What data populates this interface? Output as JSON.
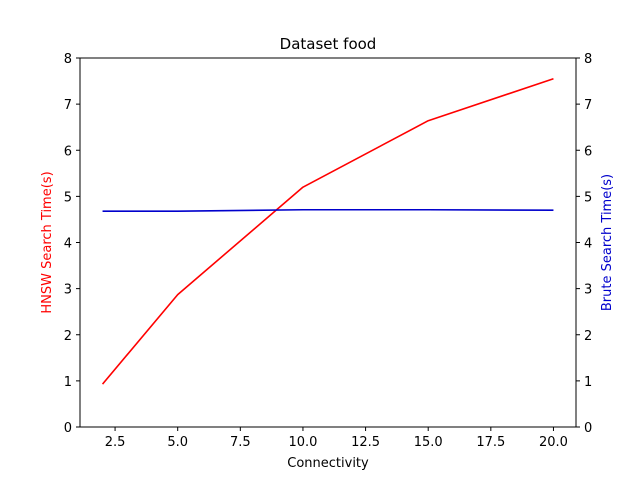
{
  "chart_data": {
    "type": "line",
    "title": "Dataset food",
    "xlabel": "Connectivity",
    "ylabel_left": "HNSW Search Time(s)",
    "ylabel_right": "Brute Search Time(s)",
    "xlim": [
      1.1,
      20.9
    ],
    "ylim_left": [
      0,
      8
    ],
    "ylim_right": [
      0,
      8
    ],
    "x_ticks": [
      "2.5",
      "5.0",
      "7.5",
      "10.0",
      "12.5",
      "15.0",
      "17.5",
      "20.0"
    ],
    "y_ticks_left": [
      "0",
      "1",
      "2",
      "3",
      "4",
      "5",
      "6",
      "7",
      "8"
    ],
    "y_ticks_right": [
      "0",
      "1",
      "2",
      "3",
      "4",
      "5",
      "6",
      "7",
      "8"
    ],
    "grid": false,
    "series": [
      {
        "axis": "left",
        "color": "#ff0000",
        "x": [
          2,
          5,
          10,
          15,
          20
        ],
        "y": [
          0.93,
          2.87,
          5.2,
          6.64,
          7.55
        ]
      },
      {
        "axis": "right",
        "color": "#0000cc",
        "x": [
          2,
          5,
          10,
          15,
          20
        ],
        "y": [
          4.68,
          4.68,
          4.71,
          4.71,
          4.7
        ]
      }
    ]
  }
}
